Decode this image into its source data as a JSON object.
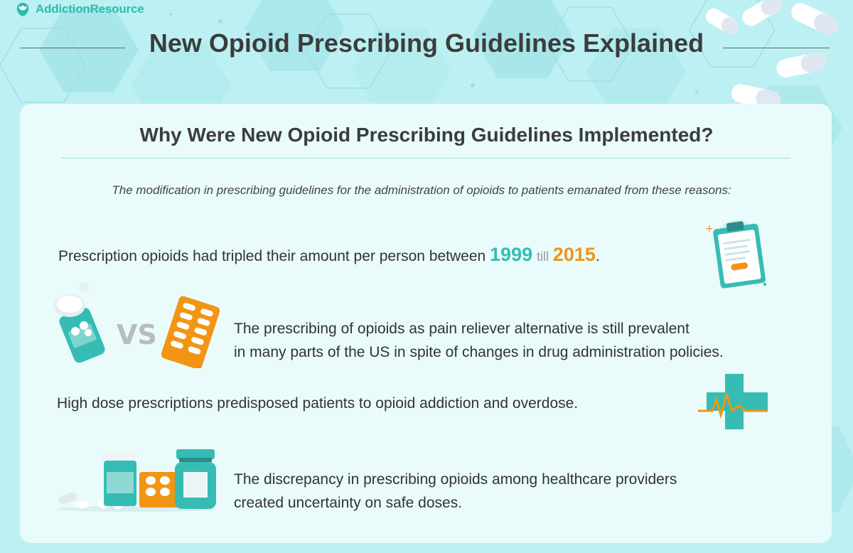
{
  "brand": {
    "name": "AddictionResource"
  },
  "header": {
    "title": "New Opioid Prescribing Guidelines Explained"
  },
  "section": {
    "title": "Why Were New Opioid Prescribing Guidelines Implemented?",
    "intro": "The modification in prescribing guidelines for the administration of opioids to patients emanated from these reasons:"
  },
  "reasons": [
    {
      "text_before": "Prescription opioids had tripled their amount per person between ",
      "year_start": "1999",
      "connector": "till",
      "year_end": "2015",
      "text_after": ".",
      "icon": "clipboard-icon"
    },
    {
      "line1": "The prescribing of opioids as pain reliever alternative is still prevalent",
      "line2": "in many parts of the US in spite of changes in drug administration policies.",
      "vs_label": "VS",
      "icon": "pill-bottle-vs-blister-pack-icon"
    },
    {
      "text": "High dose prescriptions predisposed patients to opioid addiction and overdose.",
      "icon": "medical-cross-heartbeat-icon"
    },
    {
      "line1": "The discrepancy in prescribing opioids among healthcare providers",
      "line2": "created uncertainty on safe doses.",
      "icon": "medicine-group-icon"
    }
  ],
  "colors": {
    "teal": "#36bcb4",
    "orange": "#f29514",
    "background": "#bdf0f2",
    "card": "#e9fbfb",
    "text": "#333333"
  }
}
